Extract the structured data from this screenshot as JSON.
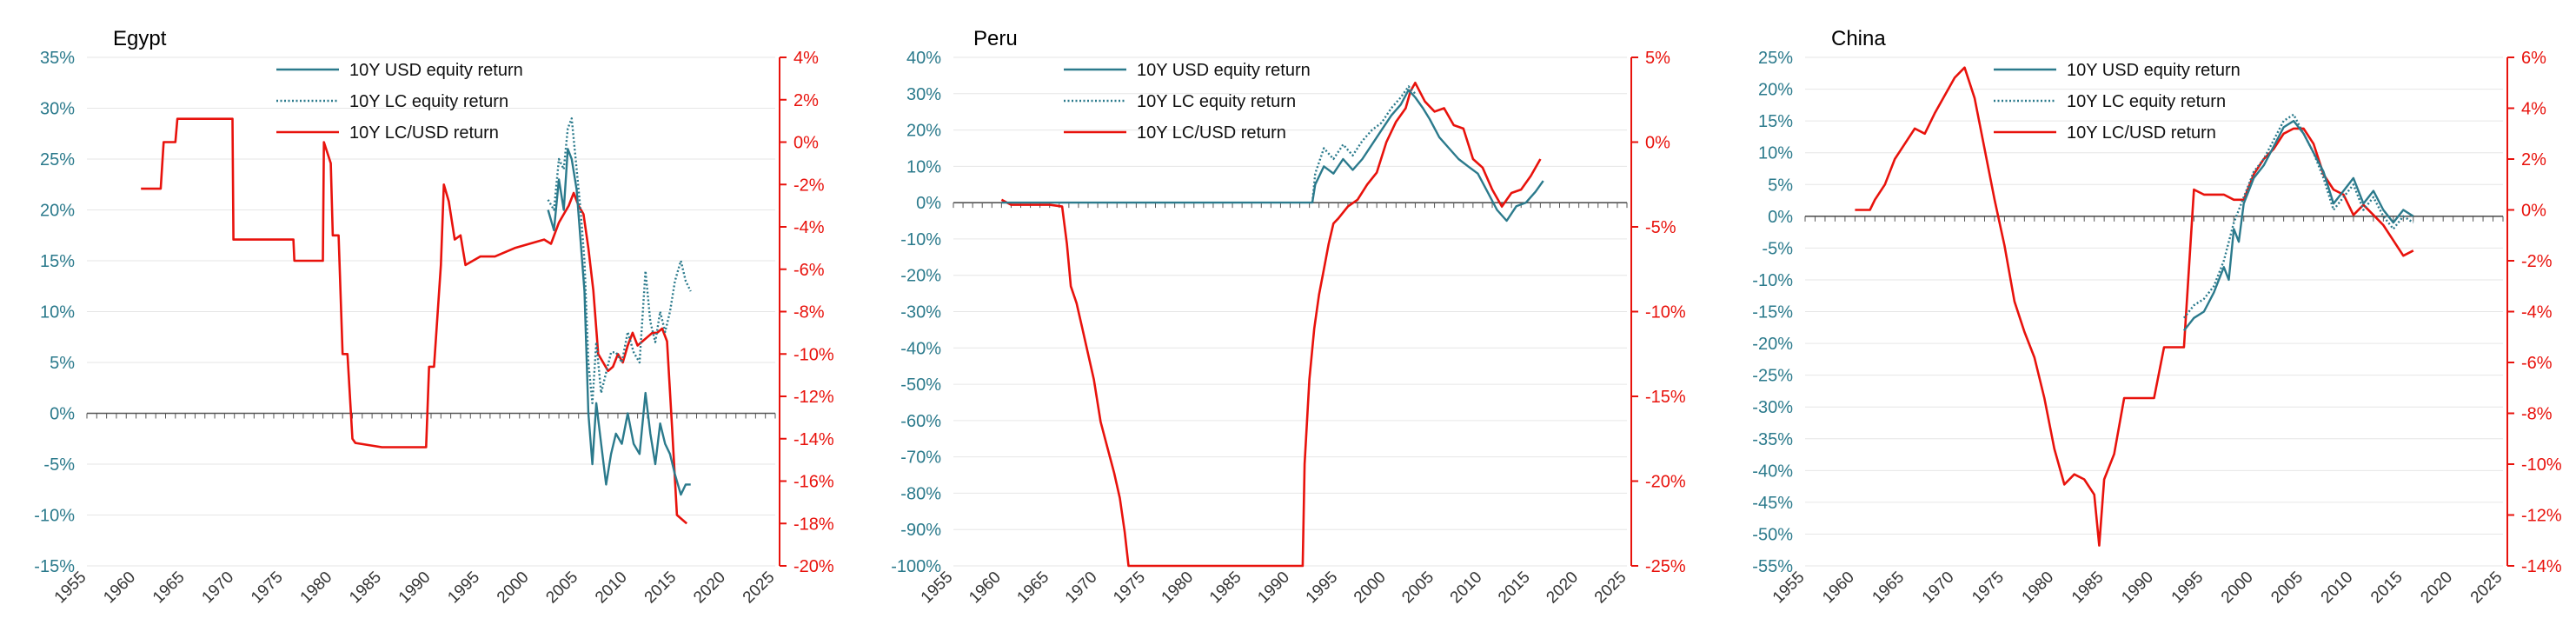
{
  "chart_data": [
    {
      "type": "line",
      "title": "Egypt",
      "xlim": [
        1955,
        2025
      ],
      "x_ticks": [
        "1955",
        "1960",
        "1965",
        "1970",
        "1975",
        "1980",
        "1985",
        "1990",
        "1995",
        "2000",
        "2005",
        "2010",
        "2015",
        "2020",
        "2025"
      ],
      "ylim_left": [
        -15,
        35
      ],
      "left_ticks": [
        "35%",
        "30%",
        "25%",
        "20%",
        "15%",
        "10%",
        "5%",
        "0%",
        "-5%",
        "-10%",
        "-15%"
      ],
      "left_tick_values": [
        35,
        30,
        25,
        20,
        15,
        10,
        5,
        0,
        -5,
        -10,
        -15
      ],
      "ylim_right": [
        -20,
        4
      ],
      "right_ticks": [
        "4%",
        "2%",
        "0%",
        "-2%",
        "-4%",
        "-6%",
        "-8%",
        "-10%",
        "-12%",
        "-14%",
        "-16%",
        "-18%",
        "-20%"
      ],
      "right_tick_values": [
        4,
        2,
        0,
        -2,
        -4,
        -6,
        -8,
        -10,
        -12,
        -14,
        -16,
        -18,
        -20
      ],
      "legend": [
        "10Y USD equity return",
        "10Y LC equity return",
        "10Y LC/USD return"
      ],
      "series": [
        {
          "name": "10Y USD equity return",
          "axis": "left",
          "style": "solid",
          "color": "#2b7a8c",
          "x": [
            2001.9,
            2002.5,
            2003.0,
            2003.5,
            2003.9,
            2004.3,
            2004.8,
            2005.2,
            2005.6,
            2006.0,
            2006.4,
            2006.8,
            2007.3,
            2007.8,
            2008.3,
            2008.8,
            2009.4,
            2010.0,
            2010.6,
            2011.2,
            2011.8,
            2012.3,
            2012.8,
            2013.3,
            2013.8,
            2014.3,
            2014.8,
            2015.4,
            2015.9,
            2016.4
          ],
          "y": [
            20,
            18,
            23,
            20,
            26,
            25,
            22,
            17,
            12,
            0,
            -5,
            1,
            -3,
            -7,
            -4,
            -2,
            -3,
            0,
            -3,
            -4,
            2,
            -2,
            -5,
            -1,
            -3,
            -4,
            -6,
            -8,
            -7,
            -7
          ]
        },
        {
          "name": "10Y LC equity return",
          "axis": "left",
          "style": "dotted",
          "color": "#2b7a8c",
          "x": [
            2001.9,
            2002.5,
            2003.0,
            2003.5,
            2003.9,
            2004.3,
            2004.8,
            2005.2,
            2005.6,
            2006.0,
            2006.4,
            2006.8,
            2007.3,
            2007.8,
            2008.3,
            2008.8,
            2009.4,
            2010.0,
            2010.6,
            2011.2,
            2011.8,
            2012.3,
            2012.8,
            2013.3,
            2013.8,
            2014.3,
            2014.8,
            2015.4,
            2015.9,
            2016.4
          ],
          "y": [
            21,
            20,
            25,
            24,
            28,
            29,
            24,
            20,
            15,
            5,
            1,
            7,
            2,
            4,
            6,
            6,
            5,
            8,
            6,
            5,
            14,
            9,
            7,
            10,
            8,
            10,
            13,
            15,
            13,
            12
          ]
        },
        {
          "name": "10Y LC/USD return",
          "axis": "right",
          "style": "solid",
          "color": "#e8120c",
          "x": [
            1960.5,
            1962.5,
            1962.8,
            1964.0,
            1964.2,
            1967.0,
            1969.8,
            1969.9,
            1976.0,
            1976.1,
            1979.0,
            1979.1,
            1979.8,
            1980.0,
            1980.6,
            1981.0,
            1981.5,
            1982.0,
            1982.3,
            1985.0,
            1989.5,
            1989.8,
            1990.3,
            1991.0,
            1991.3,
            1991.8,
            1992.4,
            1993.0,
            1993.5,
            1995.0,
            1996.5,
            1998.5,
            2000.0,
            2001.5,
            2002.2,
            2003.0,
            2003.5,
            2004.0,
            2004.5,
            2005.0,
            2005.5,
            2006.0,
            2006.5,
            2007.0,
            2007.5,
            2008.0,
            2008.5,
            2009.0,
            2009.5,
            2010.0,
            2010.5,
            2011.0,
            2011.5,
            2012.0,
            2012.5,
            2013.0,
            2013.5,
            2014.0,
            2014.5,
            2015.0,
            2015.5,
            2016.0
          ],
          "y": [
            -2.2,
            -2.2,
            0.0,
            0.0,
            1.1,
            1.1,
            1.1,
            -4.6,
            -4.6,
            -5.6,
            -5.6,
            0.0,
            -1.0,
            -4.4,
            -4.4,
            -10.0,
            -10.0,
            -14.0,
            -14.2,
            -14.4,
            -14.4,
            -10.6,
            -10.6,
            -5.8,
            -2.0,
            -2.8,
            -4.6,
            -4.4,
            -5.8,
            -5.4,
            -5.4,
            -5.0,
            -4.8,
            -4.6,
            -4.8,
            -3.8,
            -3.4,
            -3.0,
            -2.4,
            -3.0,
            -3.4,
            -5.0,
            -7.0,
            -10.0,
            -10.4,
            -10.8,
            -10.6,
            -10.0,
            -10.4,
            -9.6,
            -9.0,
            -9.6,
            -9.4,
            -9.2,
            -9.0,
            -9.0,
            -8.8,
            -9.4,
            -13.4,
            -17.6,
            -17.8,
            -18.0
          ]
        }
      ]
    },
    {
      "type": "line",
      "title": "Peru",
      "xlim": [
        1955,
        2025
      ],
      "x_ticks": [
        "1955",
        "1960",
        "1965",
        "1970",
        "1975",
        "1980",
        "1985",
        "1990",
        "1995",
        "2000",
        "2005",
        "2010",
        "2015",
        "2020",
        "2025"
      ],
      "ylim_left": [
        -100,
        40
      ],
      "left_ticks": [
        "40%",
        "30%",
        "20%",
        "10%",
        "0%",
        "-10%",
        "-20%",
        "-30%",
        "-40%",
        "-50%",
        "-60%",
        "-70%",
        "-80%",
        "-90%",
        "-100%"
      ],
      "left_tick_values": [
        40,
        30,
        20,
        10,
        0,
        -10,
        -20,
        -30,
        -40,
        -50,
        -60,
        -70,
        -80,
        -90,
        -100
      ],
      "ylim_right": [
        -25,
        5
      ],
      "right_ticks": [
        "5%",
        "0%",
        "-5%",
        "-10%",
        "-15%",
        "-20%",
        "-25%"
      ],
      "right_tick_values": [
        5,
        0,
        -5,
        -10,
        -15,
        -20,
        -25
      ],
      "legend": [
        "10Y USD equity return",
        "10Y LC equity return",
        "10Y LC/USD return"
      ],
      "series": [
        {
          "name": "10Y USD equity return",
          "axis": "left",
          "style": "solid",
          "color": "#2b7a8c",
          "x": [
            1960.0,
            1970.0,
            1980.0,
            1992.3,
            1992.6,
            1993.5,
            1994.5,
            1995.5,
            1996.5,
            1997.5,
            1998.5,
            1999.5,
            2000.5,
            2001.5,
            2002.3,
            2003.0,
            2003.8,
            2004.5,
            2005.5,
            2006.5,
            2007.5,
            2008.5,
            2009.5,
            2010.5,
            2011.5,
            2012.5,
            2013.5,
            2014.5,
            2015.5,
            2016.3
          ],
          "y": [
            0,
            0,
            0,
            0,
            5,
            10,
            8,
            12,
            9,
            12,
            16,
            20,
            24,
            27,
            31,
            29,
            26,
            23,
            18,
            15,
            12,
            10,
            8,
            3,
            -2,
            -5,
            -1,
            0,
            3,
            6
          ]
        },
        {
          "name": "10Y LC equity return",
          "axis": "left",
          "style": "dotted",
          "color": "#2b7a8c",
          "x": [
            1992.3,
            1992.6,
            1993.5,
            1994.5,
            1995.5,
            1996.5,
            1997.5,
            1998.5,
            1999.5,
            2000.5,
            2001.5,
            2002.3,
            2003.0
          ],
          "y": [
            0,
            8,
            15,
            12,
            16,
            13,
            17,
            20,
            22,
            26,
            29,
            32,
            30
          ]
        },
        {
          "name": "10Y LC/USD return",
          "axis": "right",
          "style": "solid",
          "color": "#e8120c",
          "x": [
            1960.0,
            1961.0,
            1962.0,
            1965.0,
            1966.3,
            1966.8,
            1967.2,
            1967.8,
            1968.4,
            1969.0,
            1969.6,
            1970.3,
            1971.0,
            1971.7,
            1972.3,
            1972.8,
            1973.2,
            1991.3,
            1991.5,
            1992.0,
            1992.5,
            1993.0,
            1993.5,
            1994.0,
            1994.5,
            1995.0,
            1996.0,
            1997.0,
            1998.0,
            1999.0,
            2000.0,
            2001.0,
            2002.0,
            2002.5,
            2003.0,
            2004.0,
            2005.0,
            2006.0,
            2007.0,
            2008.0,
            2009.0,
            2010.0,
            2011.0,
            2012.0,
            2013.0,
            2014.0,
            2015.0,
            2016.0
          ],
          "y": [
            -3.4,
            -3.7,
            -3.7,
            -3.7,
            -3.8,
            -6.0,
            -8.5,
            -9.5,
            -11.0,
            -12.5,
            -14.0,
            -16.5,
            -18.0,
            -19.5,
            -21.0,
            -23.0,
            -25.0,
            -25.0,
            -19.0,
            -14.0,
            -11.0,
            -9.0,
            -7.5,
            -6.0,
            -4.8,
            -4.5,
            -3.8,
            -3.4,
            -2.5,
            -1.8,
            0.0,
            1.2,
            2.0,
            3.0,
            3.5,
            2.4,
            1.8,
            2.0,
            1.0,
            0.8,
            -1.0,
            -1.5,
            -2.8,
            -3.8,
            -3.0,
            -2.8,
            -2.0,
            -1.0
          ]
        }
      ]
    },
    {
      "type": "line",
      "title": "China",
      "xlim": [
        1955,
        2025
      ],
      "x_ticks": [
        "1955",
        "1960",
        "1965",
        "1970",
        "1975",
        "1980",
        "1985",
        "1990",
        "1995",
        "2000",
        "2005",
        "2010",
        "2015",
        "2020",
        "2025"
      ],
      "ylim_left": [
        -55,
        25
      ],
      "left_ticks": [
        "25%",
        "20%",
        "15%",
        "10%",
        "5%",
        "0%",
        "-5%",
        "-10%",
        "-15%",
        "-20%",
        "-25%",
        "-30%",
        "-35%",
        "-40%",
        "-45%",
        "-50%",
        "-55%"
      ],
      "left_tick_values": [
        25,
        20,
        15,
        10,
        5,
        0,
        -5,
        -10,
        -15,
        -20,
        -25,
        -30,
        -35,
        -40,
        -45,
        -50,
        -55
      ],
      "ylim_right": [
        -14,
        6
      ],
      "right_ticks": [
        "6%",
        "4%",
        "2%",
        "0%",
        "-2%",
        "-4%",
        "-6%",
        "-8%",
        "-10%",
        "-12%",
        "-14%"
      ],
      "right_tick_values": [
        6,
        4,
        2,
        0,
        -2,
        -4,
        -6,
        -8,
        -10,
        -12,
        -14
      ],
      "legend": [
        "10Y USD equity return",
        "10Y LC equity return",
        "10Y LC/USD return"
      ],
      "series": [
        {
          "name": "10Y USD equity return",
          "axis": "left",
          "style": "solid",
          "color": "#2b7a8c",
          "x": [
            1993.0,
            1994.0,
            1995.0,
            1996.0,
            1997.0,
            1997.5,
            1998.0,
            1998.5,
            1999.0,
            2000.0,
            2001.0,
            2002.0,
            2003.0,
            2004.0,
            2005.0,
            2006.0,
            2007.0,
            2008.0,
            2009.0,
            2010.0,
            2011.0,
            2012.0,
            2013.0,
            2014.0,
            2015.0,
            2016.0
          ],
          "y": [
            -18,
            -16,
            -15,
            -12,
            -8,
            -10,
            -2,
            -4,
            2,
            6,
            8,
            11,
            14,
            15,
            13,
            10,
            7,
            2,
            4,
            6,
            2,
            4,
            1,
            -1,
            1,
            0
          ]
        },
        {
          "name": "10Y LC equity return",
          "axis": "left",
          "style": "dotted",
          "color": "#2b7a8c",
          "x": [
            1993.0,
            1994.0,
            1995.0,
            1996.0,
            1997.0,
            1998.0,
            1999.0,
            2000.0,
            2001.0,
            2002.0,
            2003.0,
            2004.0,
            2005.0,
            2006.0,
            2007.0,
            2008.0,
            2009.0,
            2010.0,
            2011.0,
            2012.0,
            2013.0,
            2014.0,
            2015.0,
            2016.0
          ],
          "y": [
            -16,
            -14,
            -13,
            -11,
            -7,
            -1,
            3,
            7,
            9,
            12,
            15,
            16,
            13,
            10,
            6,
            1,
            3,
            5,
            1,
            3,
            0,
            -2,
            0,
            -1
          ]
        },
        {
          "name": "10Y LC/USD return",
          "axis": "right",
          "style": "solid",
          "color": "#e8120c",
          "x": [
            1960.0,
            1961.5,
            1962.0,
            1963.0,
            1964.0,
            1965.0,
            1966.0,
            1967.0,
            1968.0,
            1969.0,
            1970.0,
            1971.0,
            1971.5,
            1972.0,
            1973.0,
            1974.0,
            1975.0,
            1976.0,
            1977.0,
            1978.0,
            1979.0,
            1980.0,
            1981.0,
            1982.0,
            1983.0,
            1984.0,
            1984.5,
            1985.0,
            1986.0,
            1987.0,
            1988.0,
            1989.0,
            1990.0,
            1991.0,
            1992.0,
            1993.0,
            1994.0,
            1995.0,
            1996.0,
            1997.0,
            1998.0,
            1999.0,
            2000.0,
            2001.0,
            2002.0,
            2003.0,
            2004.0,
            2005.0,
            2006.0,
            2007.0,
            2008.0,
            2009.0,
            2010.0,
            2011.0,
            2012.0,
            2013.0,
            2014.0,
            2015.0,
            2016.0
          ],
          "y": [
            0.0,
            0.0,
            0.4,
            1.0,
            2.0,
            2.6,
            3.2,
            3.0,
            3.8,
            4.5,
            5.2,
            5.6,
            5.0,
            4.4,
            2.4,
            0.4,
            -1.4,
            -3.6,
            -4.8,
            -5.8,
            -7.4,
            -9.4,
            -10.8,
            -10.4,
            -10.6,
            -11.2,
            -13.2,
            -10.6,
            -9.6,
            -7.4,
            -7.4,
            -7.4,
            -7.4,
            -5.4,
            -5.4,
            -5.4,
            0.8,
            0.6,
            0.6,
            0.6,
            0.4,
            0.4,
            1.4,
            2.0,
            2.4,
            3.0,
            3.2,
            3.2,
            2.6,
            1.4,
            0.8,
            0.6,
            -0.2,
            0.2,
            -0.2,
            -0.6,
            -1.2,
            -1.8,
            -1.6
          ]
        }
      ]
    }
  ]
}
